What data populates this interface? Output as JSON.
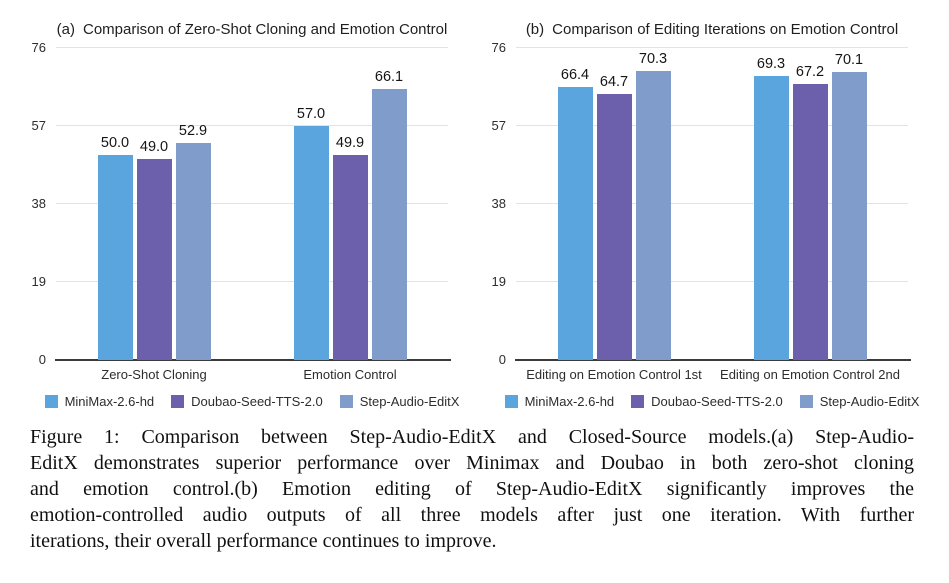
{
  "figure": {
    "caption_lines": [
      "Figure 1: Comparison between Step-Audio-EditX and Closed-Source models.(a) Step-Audio-",
      "EditX demonstrates superior performance over Minimax and Doubao in both zero-shot cloning",
      "and emotion control.(b) Emotion editing of Step-Audio-EditX significantly improves the",
      "emotion-controlled audio outputs of all three models after just one iteration.  With further",
      "iterations, their overall performance continues to improve."
    ]
  },
  "colors": {
    "background": "#ffffff",
    "gridline": "#e3e3e5",
    "axis_line": "#3a3a3a",
    "text": "#1f1f1f"
  },
  "chart_data": [
    {
      "type": "bar",
      "panel_label": "(a)",
      "title": "Comparison of Zero-Shot Cloning and Emotion Control",
      "categories": [
        "Zero-Shot Cloning",
        "Emotion Control"
      ],
      "series": [
        {
          "name": "MiniMax-2.6-hd",
          "color": "#5aa5de",
          "values": [
            50.0,
            57.0
          ]
        },
        {
          "name": "Doubao-Seed-TTS-2.0",
          "color": "#6c5fab",
          "values": [
            49.0,
            49.9
          ]
        },
        {
          "name": "Step-Audio-EditX",
          "color": "#7f9cca",
          "values": [
            52.9,
            66.1
          ]
        }
      ],
      "yticks": [
        0,
        19,
        38,
        57,
        76
      ],
      "ylim": [
        0,
        76
      ],
      "grid": true,
      "legend_position": "bottom"
    },
    {
      "type": "bar",
      "panel_label": "(b)",
      "title": "Comparison of Editing Iterations on Emotion Control",
      "categories": [
        "Editing on Emotion Control 1st",
        "Editing on Emotion Control 2nd"
      ],
      "series": [
        {
          "name": "MiniMax-2.6-hd",
          "color": "#5aa5de",
          "values": [
            66.4,
            69.3
          ]
        },
        {
          "name": "Doubao-Seed-TTS-2.0",
          "color": "#6c5fab",
          "values": [
            64.7,
            67.2
          ]
        },
        {
          "name": "Step-Audio-EditX",
          "color": "#7f9cca",
          "values": [
            70.3,
            70.1
          ]
        }
      ],
      "yticks": [
        0,
        19,
        38,
        57,
        76
      ],
      "ylim": [
        0,
        76
      ],
      "grid": true,
      "legend_position": "bottom"
    }
  ]
}
